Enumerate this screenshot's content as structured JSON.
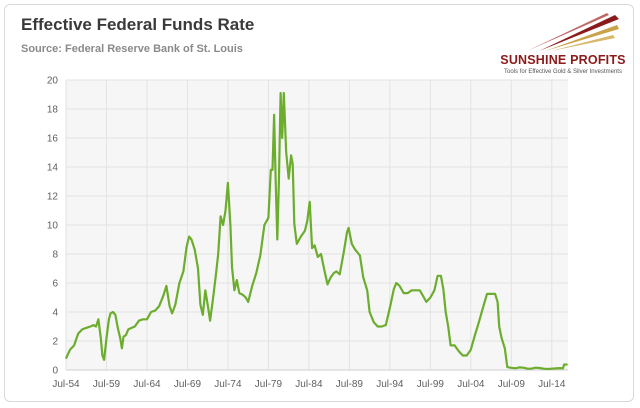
{
  "header": {
    "title": "Effective Federal Funds Rate",
    "subtitle": "Source: Federal Reserve Bank of St. Louis"
  },
  "logo": {
    "name": "SUNSHINE PROFITS",
    "tagline": "Tools for Effective Gold & Silver Investments"
  },
  "colors": {
    "line": "#6cad2e",
    "grid": "#e3e3e3",
    "plot_bg": "#f6f6f6",
    "logo_red": "#8b1a1a",
    "logo_gold": "#c9a24a"
  },
  "chart_data": {
    "type": "line",
    "title": "Effective Federal Funds Rate",
    "subtitle": "Source: Federal Reserve Bank of St. Louis",
    "xlabel": "",
    "ylabel": "",
    "ylim": [
      0,
      20
    ],
    "xlim": [
      1954.5,
      2016.5
    ],
    "yticks": [
      0,
      2,
      4,
      6,
      8,
      10,
      12,
      14,
      16,
      18,
      20
    ],
    "xticks": [
      {
        "x": 1954.5,
        "label": "Jul-54"
      },
      {
        "x": 1959.5,
        "label": "Jul-59"
      },
      {
        "x": 1964.5,
        "label": "Jul-64"
      },
      {
        "x": 1969.5,
        "label": "Jul-69"
      },
      {
        "x": 1974.5,
        "label": "Jul-74"
      },
      {
        "x": 1979.5,
        "label": "Jul-79"
      },
      {
        "x": 1984.5,
        "label": "Jul-84"
      },
      {
        "x": 1989.5,
        "label": "Jul-89"
      },
      {
        "x": 1994.5,
        "label": "Jul-94"
      },
      {
        "x": 1999.5,
        "label": "Jul-99"
      },
      {
        "x": 2004.5,
        "label": "Jul-04"
      },
      {
        "x": 2009.5,
        "label": "Jul-09"
      },
      {
        "x": 2014.5,
        "label": "Jul-14"
      }
    ],
    "grid": true,
    "legend": "none",
    "series": [
      {
        "values": [
          [
            1954.5,
            0.8
          ],
          [
            1955.0,
            1.4
          ],
          [
            1955.5,
            1.7
          ],
          [
            1956.0,
            2.5
          ],
          [
            1956.5,
            2.8
          ],
          [
            1957.0,
            2.9
          ],
          [
            1957.5,
            3.0
          ],
          [
            1957.9,
            3.1
          ],
          [
            1958.2,
            3.0
          ],
          [
            1958.5,
            3.5
          ],
          [
            1958.8,
            2.2
          ],
          [
            1959.0,
            1.0
          ],
          [
            1959.2,
            0.7
          ],
          [
            1959.5,
            2.2
          ],
          [
            1959.8,
            3.5
          ],
          [
            1960.0,
            3.9
          ],
          [
            1960.3,
            4.0
          ],
          [
            1960.6,
            3.8
          ],
          [
            1960.9,
            2.9
          ],
          [
            1961.2,
            2.2
          ],
          [
            1961.4,
            1.5
          ],
          [
            1961.6,
            2.3
          ],
          [
            1961.9,
            2.4
          ],
          [
            1962.2,
            2.8
          ],
          [
            1962.6,
            2.9
          ],
          [
            1963.0,
            3.0
          ],
          [
            1963.5,
            3.4
          ],
          [
            1964.0,
            3.5
          ],
          [
            1964.5,
            3.5
          ],
          [
            1965.0,
            4.0
          ],
          [
            1965.5,
            4.1
          ],
          [
            1966.0,
            4.4
          ],
          [
            1966.5,
            5.1
          ],
          [
            1966.9,
            5.8
          ],
          [
            1967.3,
            4.4
          ],
          [
            1967.6,
            3.9
          ],
          [
            1968.0,
            4.5
          ],
          [
            1968.5,
            6.0
          ],
          [
            1969.0,
            6.8
          ],
          [
            1969.4,
            8.5
          ],
          [
            1969.7,
            9.2
          ],
          [
            1970.0,
            9.0
          ],
          [
            1970.4,
            8.3
          ],
          [
            1970.8,
            7.0
          ],
          [
            1971.1,
            4.5
          ],
          [
            1971.4,
            3.8
          ],
          [
            1971.7,
            5.5
          ],
          [
            1972.0,
            4.5
          ],
          [
            1972.3,
            3.4
          ],
          [
            1972.6,
            4.7
          ],
          [
            1973.0,
            6.5
          ],
          [
            1973.3,
            8.0
          ],
          [
            1973.6,
            10.6
          ],
          [
            1973.9,
            10.0
          ],
          [
            1974.2,
            11.0
          ],
          [
            1974.5,
            12.9
          ],
          [
            1974.8,
            10.0
          ],
          [
            1975.0,
            7.1
          ],
          [
            1975.3,
            5.5
          ],
          [
            1975.6,
            6.2
          ],
          [
            1975.9,
            5.3
          ],
          [
            1976.3,
            5.2
          ],
          [
            1976.7,
            5.0
          ],
          [
            1977.0,
            4.7
          ],
          [
            1977.5,
            5.8
          ],
          [
            1978.0,
            6.7
          ],
          [
            1978.5,
            7.9
          ],
          [
            1979.0,
            10.0
          ],
          [
            1979.5,
            10.5
          ],
          [
            1979.8,
            13.8
          ],
          [
            1980.0,
            13.8
          ],
          [
            1980.2,
            17.6
          ],
          [
            1980.4,
            13.0
          ],
          [
            1980.6,
            9.0
          ],
          [
            1980.8,
            13.0
          ],
          [
            1981.0,
            19.1
          ],
          [
            1981.2,
            16.0
          ],
          [
            1981.4,
            19.1
          ],
          [
            1981.7,
            15.0
          ],
          [
            1982.0,
            13.2
          ],
          [
            1982.3,
            14.8
          ],
          [
            1982.5,
            14.2
          ],
          [
            1982.7,
            10.1
          ],
          [
            1983.0,
            8.7
          ],
          [
            1983.5,
            9.2
          ],
          [
            1984.0,
            9.6
          ],
          [
            1984.3,
            10.3
          ],
          [
            1984.6,
            11.6
          ],
          [
            1984.9,
            8.4
          ],
          [
            1985.2,
            8.6
          ],
          [
            1985.6,
            7.8
          ],
          [
            1986.0,
            8.0
          ],
          [
            1986.4,
            6.9
          ],
          [
            1986.8,
            5.9
          ],
          [
            1987.2,
            6.4
          ],
          [
            1987.6,
            6.7
          ],
          [
            1987.9,
            6.8
          ],
          [
            1988.3,
            6.6
          ],
          [
            1988.8,
            8.1
          ],
          [
            1989.2,
            9.5
          ],
          [
            1989.4,
            9.8
          ],
          [
            1989.8,
            8.7
          ],
          [
            1990.2,
            8.3
          ],
          [
            1990.8,
            7.9
          ],
          [
            1991.2,
            6.4
          ],
          [
            1991.7,
            5.5
          ],
          [
            1992.0,
            4.0
          ],
          [
            1992.5,
            3.3
          ],
          [
            1993.0,
            3.0
          ],
          [
            1993.5,
            3.0
          ],
          [
            1994.0,
            3.1
          ],
          [
            1994.5,
            4.3
          ],
          [
            1995.0,
            5.6
          ],
          [
            1995.3,
            6.0
          ],
          [
            1995.7,
            5.8
          ],
          [
            1996.2,
            5.3
          ],
          [
            1996.7,
            5.3
          ],
          [
            1997.2,
            5.5
          ],
          [
            1997.7,
            5.5
          ],
          [
            1998.2,
            5.5
          ],
          [
            1998.7,
            5.0
          ],
          [
            1999.0,
            4.7
          ],
          [
            1999.5,
            5.0
          ],
          [
            2000.0,
            5.5
          ],
          [
            2000.4,
            6.5
          ],
          [
            2000.8,
            6.5
          ],
          [
            2001.1,
            5.6
          ],
          [
            2001.4,
            4.0
          ],
          [
            2001.7,
            3.0
          ],
          [
            2002.0,
            1.7
          ],
          [
            2002.5,
            1.7
          ],
          [
            2003.0,
            1.3
          ],
          [
            2003.5,
            1.0
          ],
          [
            2004.0,
            1.0
          ],
          [
            2004.5,
            1.4
          ],
          [
            2005.0,
            2.4
          ],
          [
            2005.5,
            3.3
          ],
          [
            2006.0,
            4.3
          ],
          [
            2006.5,
            5.25
          ],
          [
            2007.0,
            5.25
          ],
          [
            2007.5,
            5.25
          ],
          [
            2007.8,
            4.7
          ],
          [
            2008.0,
            3.0
          ],
          [
            2008.3,
            2.2
          ],
          [
            2008.7,
            1.5
          ],
          [
            2009.0,
            0.2
          ],
          [
            2009.5,
            0.15
          ],
          [
            2010.0,
            0.12
          ],
          [
            2010.5,
            0.18
          ],
          [
            2011.0,
            0.16
          ],
          [
            2011.5,
            0.09
          ],
          [
            2012.0,
            0.1
          ],
          [
            2012.5,
            0.16
          ],
          [
            2013.0,
            0.14
          ],
          [
            2013.5,
            0.09
          ],
          [
            2014.0,
            0.07
          ],
          [
            2014.5,
            0.09
          ],
          [
            2015.0,
            0.11
          ],
          [
            2015.5,
            0.13
          ],
          [
            2015.9,
            0.12
          ],
          [
            2016.0,
            0.37
          ],
          [
            2016.4,
            0.38
          ]
        ]
      }
    ]
  }
}
